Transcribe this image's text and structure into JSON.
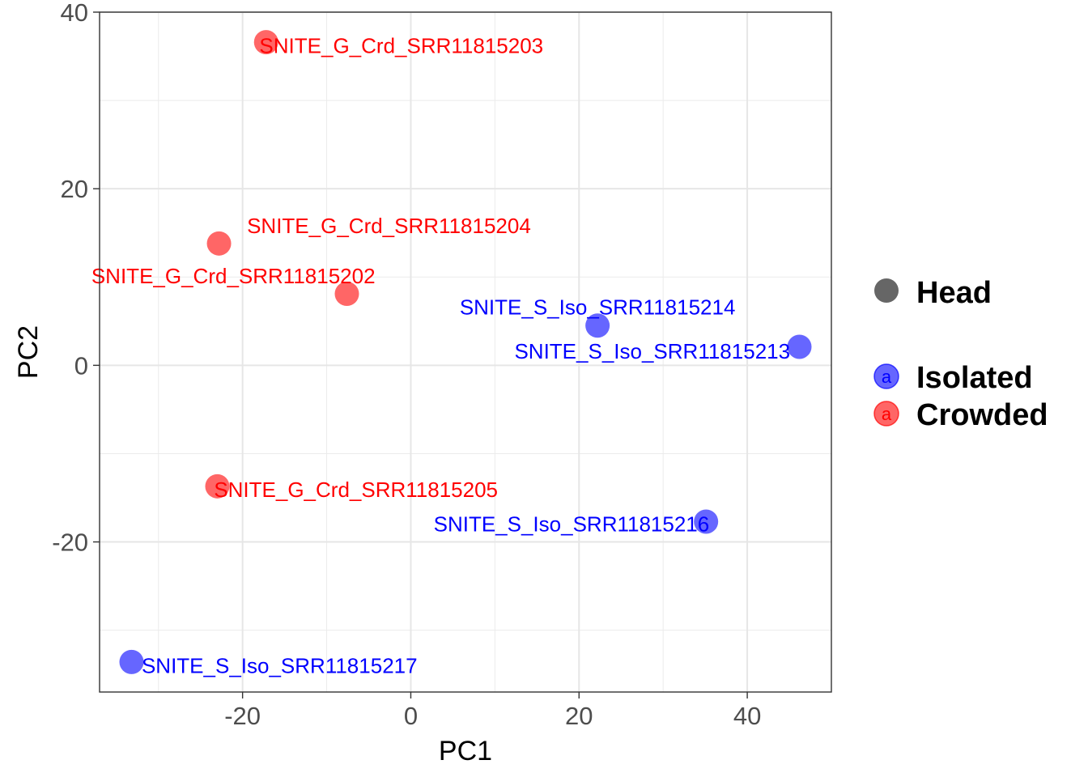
{
  "chart_data": {
    "type": "scatter",
    "xlabel": "PC1",
    "ylabel": "PC2",
    "xlim": [
      -37,
      50
    ],
    "ylim": [
      -37,
      40
    ],
    "x_ticks": [
      -20,
      0,
      20,
      40
    ],
    "y_ticks": [
      -20,
      0,
      20,
      40
    ],
    "x_tick_labels": [
      "-20",
      "0",
      "20",
      "40"
    ],
    "y_tick_labels": [
      "-20",
      "0",
      "20",
      "40"
    ],
    "grid": true,
    "legend_position": "right",
    "legend": {
      "shape_entries": [
        {
          "label": "Head",
          "color": "#666666"
        }
      ],
      "color_entries": [
        {
          "label": "Isolated",
          "color": "#0000ff"
        },
        {
          "label": "Crowded",
          "color": "#ff0000"
        }
      ],
      "key_glyph": "a"
    },
    "series": [
      {
        "name": "Isolated",
        "color": "#0000ff",
        "points": [
          {
            "label": "SNITE_S_Iso_SRR11815214",
            "x": 22.2,
            "y": 4.5,
            "label_anchor": "middle",
            "label_dx": 0,
            "label_dy": 2.1
          },
          {
            "label": "SNITE_S_Iso_SRR11815213",
            "x": 46.2,
            "y": 2.1,
            "label_anchor": "end",
            "label_dx": -1.1,
            "label_dy": -0.5
          },
          {
            "label": "SNITE_S_Iso_SRR11815216",
            "x": 35.1,
            "y": -17.7,
            "label_anchor": "middle",
            "label_dx": -16.0,
            "label_dy": -0.3
          },
          {
            "label": "SNITE_S_Iso_SRR11815217",
            "x": -33.2,
            "y": -33.6,
            "label_anchor": "start",
            "label_dx": 1.2,
            "label_dy": -0.4
          }
        ]
      },
      {
        "name": "Crowded",
        "color": "#ff0000",
        "points": [
          {
            "label": "SNITE_G_Crd_SRR11815203",
            "x": -17.2,
            "y": 36.6,
            "label_anchor": "start",
            "label_dx": -0.8,
            "label_dy": -0.4
          },
          {
            "label": "SNITE_G_Crd_SRR11815204",
            "x": -22.8,
            "y": 13.8,
            "label_anchor": "middle",
            "label_dx": 20.2,
            "label_dy": 2.0
          },
          {
            "label": "SNITE_G_Crd_SRR11815202",
            "x": -7.6,
            "y": 8.1,
            "label_anchor": "middle",
            "label_dx": -13.5,
            "label_dy": 2.0
          },
          {
            "label": "SNITE_G_Crd_SRR11815205",
            "x": -23.0,
            "y": -13.7,
            "label_anchor": "start",
            "label_dx": -0.4,
            "label_dy": -0.4
          }
        ]
      }
    ]
  }
}
